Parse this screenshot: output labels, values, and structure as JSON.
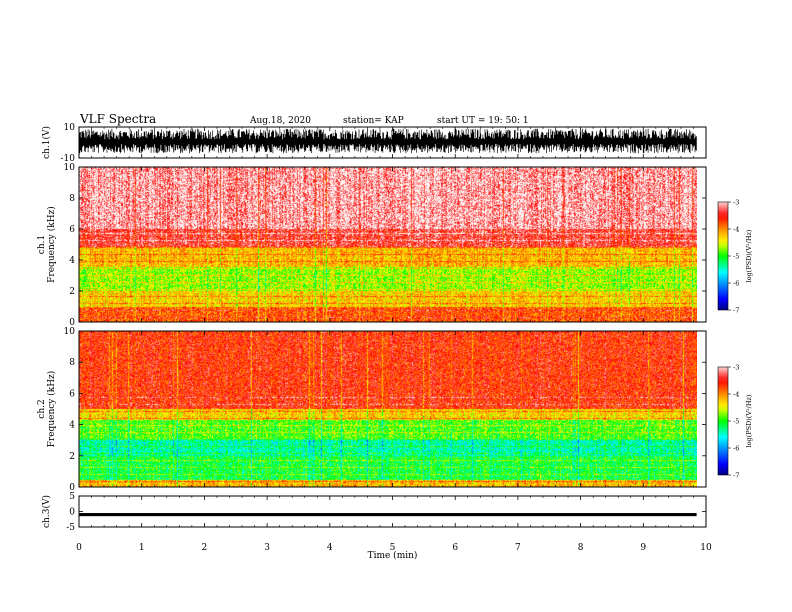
{
  "header": {
    "title": "VLF Spectra",
    "date": "Aug.18, 2020",
    "station": "station= KAP",
    "start_ut": "start  UT  =   19: 50: 1"
  },
  "colors": {
    "colormap": [
      "#000080",
      "#0000ff",
      "#00ffff",
      "#00ff00",
      "#ffff00",
      "#ffa500",
      "#ff0000",
      "#ffffff"
    ],
    "trace": "#000000"
  },
  "chart_data": [
    {
      "type": "line",
      "panel": "waveform-ch1",
      "ylabel": "ch.1(V)",
      "ylim": [
        -10,
        10
      ],
      "y_ticks": [
        "10",
        "-10"
      ],
      "xlim": [
        0,
        10
      ],
      "trace_span_min": [
        0,
        9.85
      ],
      "description_values": {
        "approx_amplitude_range": [
          -7,
          9
        ]
      }
    },
    {
      "type": "heatmap",
      "panel": "spectrogram-ch1",
      "ylabel": "ch.1\nFrequency  (kHz)",
      "ylim": [
        0,
        10
      ],
      "y_ticks": [
        "0",
        "2",
        "4",
        "6",
        "8",
        "10"
      ],
      "xlim": [
        0,
        10
      ],
      "data_span_min": [
        0,
        9.85
      ],
      "band_levels_log_psd": [
        {
          "freq_khz": [
            0,
            1
          ],
          "level": -3.8
        },
        {
          "freq_khz": [
            1,
            2
          ],
          "level": -4.3
        },
        {
          "freq_khz": [
            2,
            3.6
          ],
          "level": -4.7
        },
        {
          "freq_khz": [
            3.6,
            4.9
          ],
          "level": -4.2
        },
        {
          "freq_khz": [
            4.9,
            6
          ],
          "level": -3.4
        },
        {
          "freq_khz": [
            6,
            10
          ],
          "level": -3.1
        }
      ],
      "colorbar": {
        "label": "log(PSD)(V²/Hz)",
        "range": [
          -7,
          -3
        ],
        "ticks": [
          "-3",
          "-4",
          "-5",
          "-6",
          "-7"
        ]
      }
    },
    {
      "type": "heatmap",
      "panel": "spectrogram-ch2",
      "ylabel": "ch.2\nFrequency  (kHz)",
      "ylim": [
        0,
        10
      ],
      "y_ticks": [
        "0",
        "2",
        "4",
        "6",
        "8",
        "10"
      ],
      "xlim": [
        0,
        10
      ],
      "data_span_min": [
        0,
        9.85
      ],
      "band_levels_log_psd": [
        {
          "freq_khz": [
            0,
            0.5
          ],
          "level": -4.2
        },
        {
          "freq_khz": [
            0.5,
            2
          ],
          "level": -5.1
        },
        {
          "freq_khz": [
            2,
            3.1
          ],
          "level": -5.4
        },
        {
          "freq_khz": [
            3.1,
            4.3
          ],
          "level": -4.9
        },
        {
          "freq_khz": [
            4.3,
            5
          ],
          "level": -4.3
        },
        {
          "freq_khz": [
            5,
            10
          ],
          "level": -3.6
        }
      ],
      "colorbar": {
        "label": "log(PSD)(V²/Hz)",
        "range": [
          -7,
          -3
        ],
        "ticks": [
          "-3",
          "-4",
          "-5",
          "-6",
          "-7"
        ]
      }
    },
    {
      "type": "line",
      "panel": "waveform-ch3",
      "ylabel": "ch.3(V)",
      "ylim": [
        -5,
        5
      ],
      "y_ticks": [
        "5",
        "0",
        "-5"
      ],
      "xlim": [
        0,
        10
      ],
      "xlabel": "Time  (min)",
      "x_ticks": [
        "0",
        "1",
        "2",
        "3",
        "4",
        "5",
        "6",
        "7",
        "8",
        "9",
        "10"
      ],
      "trace_span_min": [
        0,
        9.85
      ],
      "description_values": {
        "band_range_v": [
          -1.5,
          -0.5
        ]
      }
    }
  ]
}
